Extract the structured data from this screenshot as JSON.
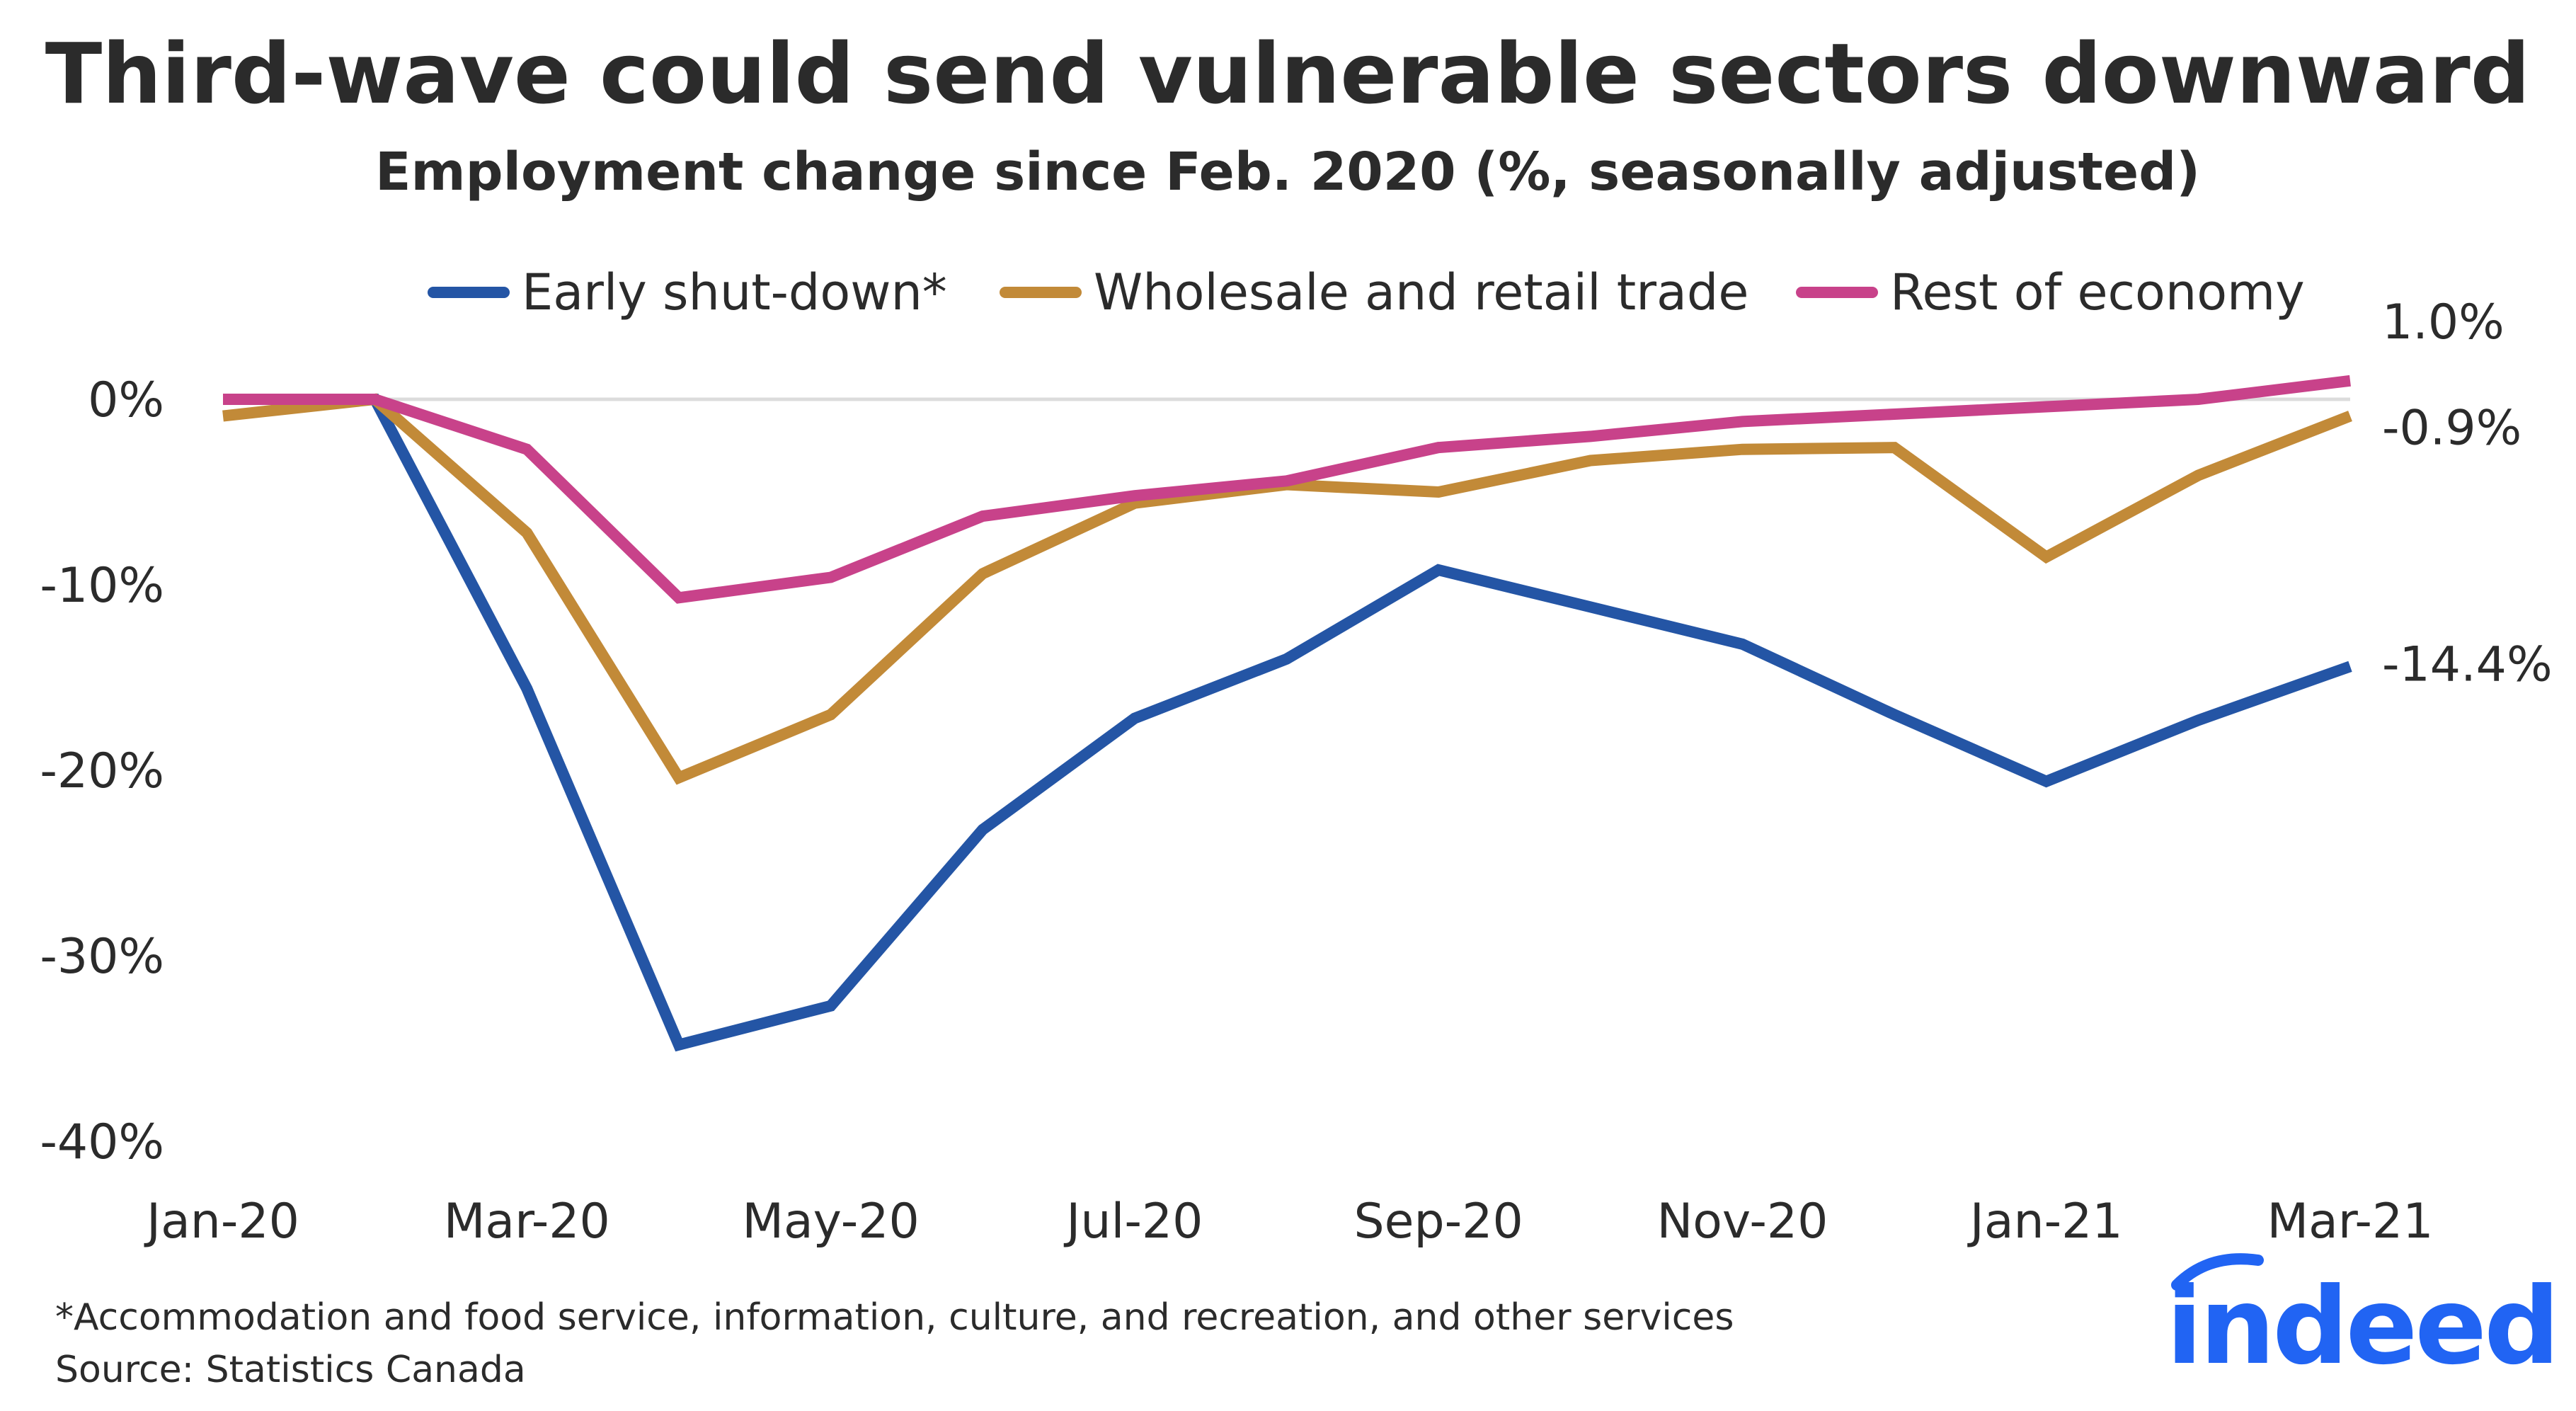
{
  "chart_data": {
    "type": "line",
    "title": "Third-wave could send vulnerable sectors downward",
    "subtitle": "Employment change since Feb. 2020 (%, seasonally adjusted)",
    "xlabel": "",
    "ylabel": "",
    "x": [
      "Jan-20",
      "Feb-20",
      "Mar-20",
      "Apr-20",
      "May-20",
      "Jun-20",
      "Jul-20",
      "Aug-20",
      "Sep-20",
      "Oct-20",
      "Nov-20",
      "Dec-20",
      "Jan-21",
      "Feb-21",
      "Mar-21"
    ],
    "x_tick_labels": [
      "Jan-20",
      "Mar-20",
      "May-20",
      "Jul-20",
      "Sep-20",
      "Nov-20",
      "Jan-21",
      "Mar-21"
    ],
    "ylim": [
      -40,
      1
    ],
    "y_ticks": [
      0,
      -10,
      -20,
      -30,
      -40
    ],
    "y_tick_labels": [
      "0%",
      "-10%",
      "-20%",
      "-30%",
      "-40%"
    ],
    "grid": "zero line only",
    "legend_position": "top",
    "series": [
      {
        "name": "Early shut-down*",
        "color": "#2455a5",
        "values": [
          0,
          0,
          -15.6,
          -34.8,
          -32.7,
          -23.2,
          -17.2,
          -14.0,
          -9.2,
          -11.2,
          -13.2,
          -17.0,
          -20.6,
          -17.3,
          -14.4
        ],
        "end_label": "-14.4%"
      },
      {
        "name": "Wholesale and retail trade",
        "color": "#c28a38",
        "values": [
          -0.9,
          0,
          -7.2,
          -20.4,
          -17.0,
          -9.4,
          -5.6,
          -4.6,
          -5.0,
          -3.3,
          -2.7,
          -2.6,
          -8.5,
          -4.1,
          -0.9
        ],
        "end_label": "-0.9%"
      },
      {
        "name": "Rest of economy",
        "color": "#c8428a",
        "values": [
          0,
          0,
          -2.7,
          -10.7,
          -9.6,
          -6.3,
          -5.2,
          -4.4,
          -2.6,
          -2.0,
          -1.2,
          -0.8,
          -0.4,
          0,
          1.0
        ],
        "end_label": "1.0%"
      }
    ]
  },
  "footnote": "*Accommodation and food service, information, culture, and recreation, and other services",
  "source": "Source: Statistics Canada",
  "logo": "indeed",
  "logo_color": "#2164f3"
}
